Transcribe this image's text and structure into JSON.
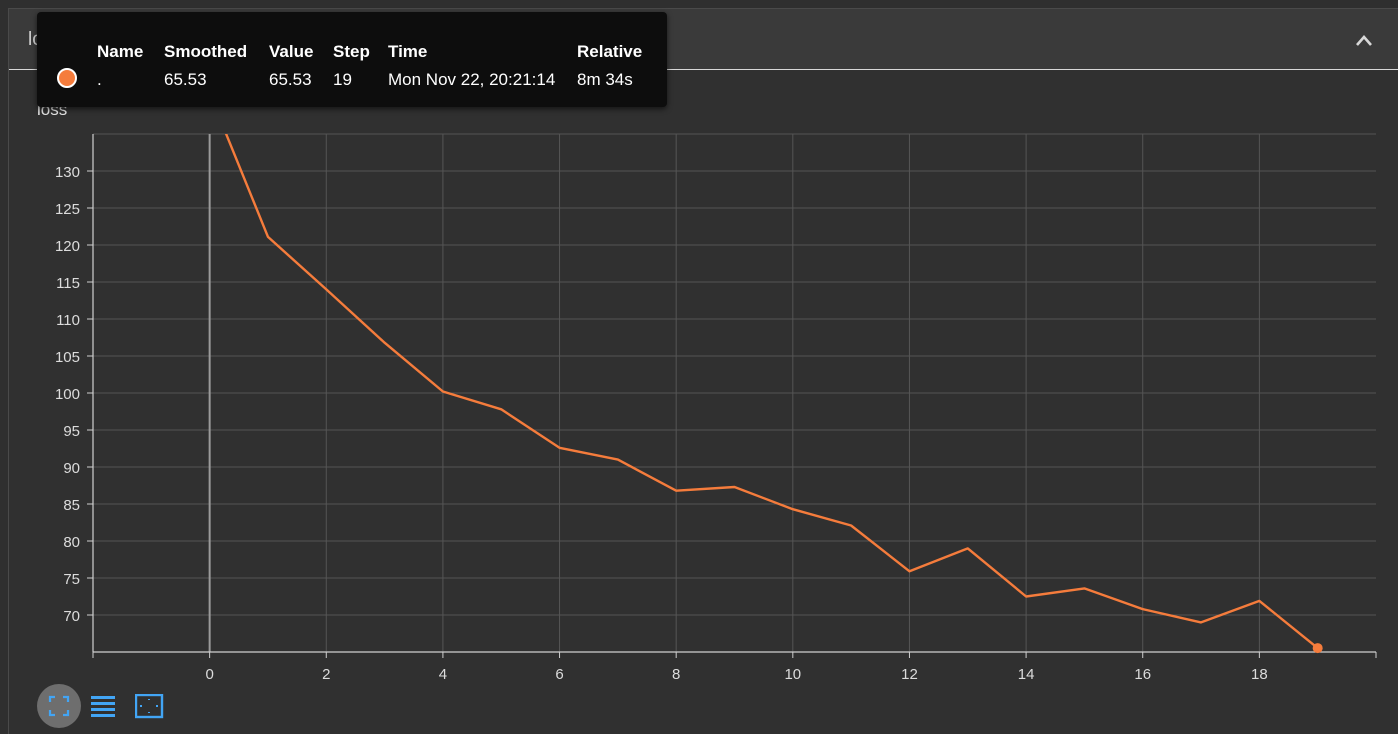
{
  "card": {
    "title": "loss"
  },
  "tooltip": {
    "headers": {
      "name": "Name",
      "smoothed": "Smoothed",
      "value": "Value",
      "step": "Step",
      "time": "Time",
      "relative": "Relative"
    },
    "row": {
      "name": ".",
      "smoothed": "65.53",
      "value": "65.53",
      "step": "19",
      "time": "Mon Nov 22, 20:21:14",
      "relative": "8m 34s"
    }
  },
  "colors": {
    "series": "#f57c3c",
    "accent": "#42a5f5",
    "grid": "#555555",
    "axis": "#d0d0d0"
  },
  "icons": {
    "collapse": "chevron-up-icon",
    "fit": "fit-to-data-icon",
    "list": "list-icon",
    "expand": "expand-icon"
  },
  "chart_data": {
    "type": "line",
    "title": "loss",
    "xlabel": "",
    "ylabel": "",
    "xlim": [
      -2,
      20
    ],
    "ylim": [
      65,
      135
    ],
    "x_ticks": [
      0,
      2,
      4,
      6,
      8,
      10,
      12,
      14,
      16,
      18
    ],
    "y_ticks": [
      70,
      75,
      80,
      85,
      90,
      95,
      100,
      105,
      110,
      115,
      120,
      125,
      130
    ],
    "grid": true,
    "series": [
      {
        "name": ".",
        "x": [
          0,
          1,
          2,
          3,
          4,
          5,
          6,
          7,
          8,
          9,
          10,
          11,
          12,
          13,
          14,
          15,
          16,
          17,
          18,
          19
        ],
        "y": [
          140.5,
          121.1,
          114.0,
          106.8,
          100.2,
          97.8,
          92.6,
          91.0,
          86.8,
          87.3,
          84.3,
          82.1,
          75.9,
          79.0,
          72.5,
          73.6,
          70.8,
          69.0,
          71.9,
          65.53
        ],
        "highlight_index": 19
      }
    ]
  }
}
